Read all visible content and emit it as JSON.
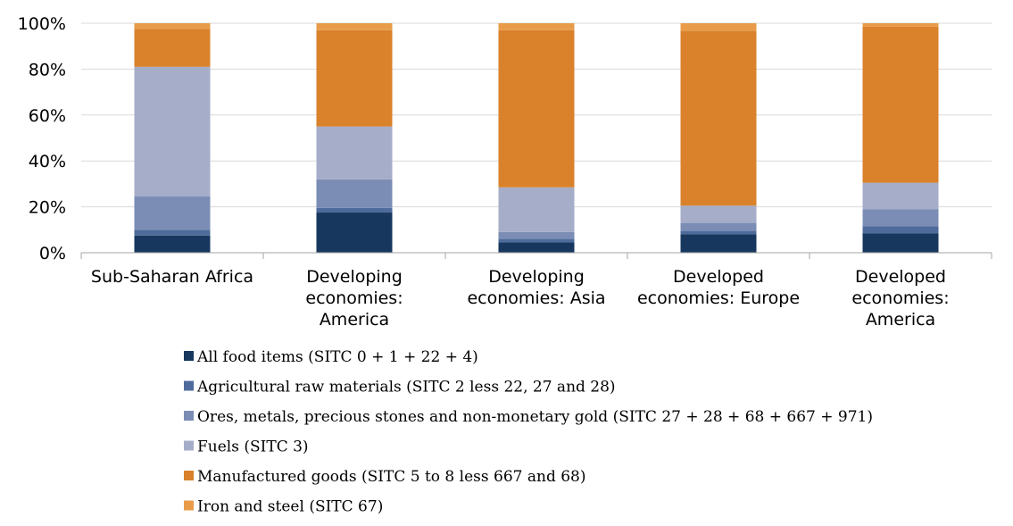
{
  "chart_data": {
    "type": "bar",
    "stacked": true,
    "normalized": true,
    "title": "",
    "xlabel": "",
    "ylabel": "",
    "ylim": [
      0,
      100
    ],
    "yticks": [
      "0%",
      "20%",
      "40%",
      "60%",
      "80%",
      "100%"
    ],
    "grid": true,
    "legend_position": "bottom",
    "categories": [
      [
        "Sub-Saharan Africa"
      ],
      [
        "Developing",
        "economies:",
        "America"
      ],
      [
        "Developing",
        "economies: Asia"
      ],
      [
        "Developed",
        "economies: Europe"
      ],
      [
        "Developed",
        "economies:",
        "America"
      ]
    ],
    "series": [
      {
        "name": "All food items (SITC 0 + 1 + 22 + 4)",
        "color": "#17375e",
        "values": [
          7.5,
          17.5,
          4.5,
          8.0,
          8.5
        ]
      },
      {
        "name": "Agricultural raw materials (SITC 2 less 22, 27 and 28)",
        "color": "#4f6b9c",
        "values": [
          2.5,
          2.0,
          1.5,
          1.5,
          3.0
        ]
      },
      {
        "name": "Ores, metals, precious stones and non-monetary gold (SITC 27 + 28 + 68 + 667 + 971)",
        "color": "#7b8db5",
        "values": [
          14.5,
          12.5,
          3.0,
          3.5,
          7.5
        ]
      },
      {
        "name": "Fuels (SITC 3)",
        "color": "#a6adc8",
        "values": [
          56.5,
          23.0,
          19.5,
          7.5,
          11.5
        ]
      },
      {
        "name": "Manufactured goods (SITC 5 to 8 less 667 and 68)",
        "color": "#d9822b",
        "values": [
          16.5,
          42.0,
          68.5,
          76.0,
          68.0
        ]
      },
      {
        "name": "Iron and steel (SITC 67)",
        "color": "#e89c4a",
        "values": [
          2.5,
          3.0,
          3.0,
          3.5,
          1.5
        ]
      }
    ]
  }
}
